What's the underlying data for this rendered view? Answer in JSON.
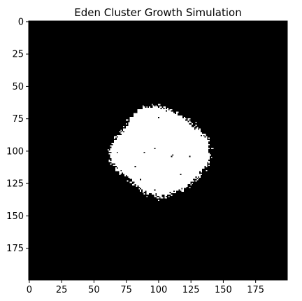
{
  "chart_data": {
    "type": "heatmap",
    "title": "Eden Cluster Growth Simulation",
    "xlabel": "",
    "ylabel": "",
    "grid_size": [
      200,
      200
    ],
    "xlim": [
      0,
      200
    ],
    "ylim": [
      200,
      0
    ],
    "x_ticks": [
      0,
      25,
      50,
      75,
      100,
      125,
      150,
      175
    ],
    "y_ticks": [
      0,
      25,
      50,
      75,
      100,
      125,
      150,
      175
    ],
    "x_tick_labels": [
      "0",
      "25",
      "50",
      "75",
      "100",
      "125",
      "150",
      "175"
    ],
    "y_tick_labels": [
      "0",
      "25",
      "50",
      "75",
      "100",
      "125",
      "150",
      "175"
    ],
    "colormap": {
      "empty": "#000000",
      "occupied": "#ffffff"
    },
    "cluster": {
      "center": [
        99.5,
        99.5
      ],
      "mean_radius": 35,
      "boundary_radius_profile": [
        {
          "angle_deg": 0,
          "radius": 41
        },
        {
          "angle_deg": 15,
          "radius": 40
        },
        {
          "angle_deg": 30,
          "radius": 35
        },
        {
          "angle_deg": 45,
          "radius": 34
        },
        {
          "angle_deg": 60,
          "radius": 33
        },
        {
          "angle_deg": 75,
          "radius": 33
        },
        {
          "angle_deg": 90,
          "radius": 35
        },
        {
          "angle_deg": 105,
          "radius": 36
        },
        {
          "angle_deg": 120,
          "radius": 36
        },
        {
          "angle_deg": 135,
          "radius": 33
        },
        {
          "angle_deg": 150,
          "radius": 32
        },
        {
          "angle_deg": 165,
          "radius": 35
        },
        {
          "angle_deg": 180,
          "radius": 38
        },
        {
          "angle_deg": 195,
          "radius": 38
        },
        {
          "angle_deg": 210,
          "radius": 34
        },
        {
          "angle_deg": 225,
          "radius": 32
        },
        {
          "angle_deg": 240,
          "radius": 33
        },
        {
          "angle_deg": 255,
          "radius": 35
        },
        {
          "angle_deg": 270,
          "radius": 37
        },
        {
          "angle_deg": 285,
          "radius": 36
        },
        {
          "angle_deg": 300,
          "radius": 36
        },
        {
          "angle_deg": 315,
          "radius": 37
        },
        {
          "angle_deg": 330,
          "radius": 38
        },
        {
          "angle_deg": 345,
          "radius": 41
        }
      ],
      "edge_roughness": 2.5
    }
  }
}
